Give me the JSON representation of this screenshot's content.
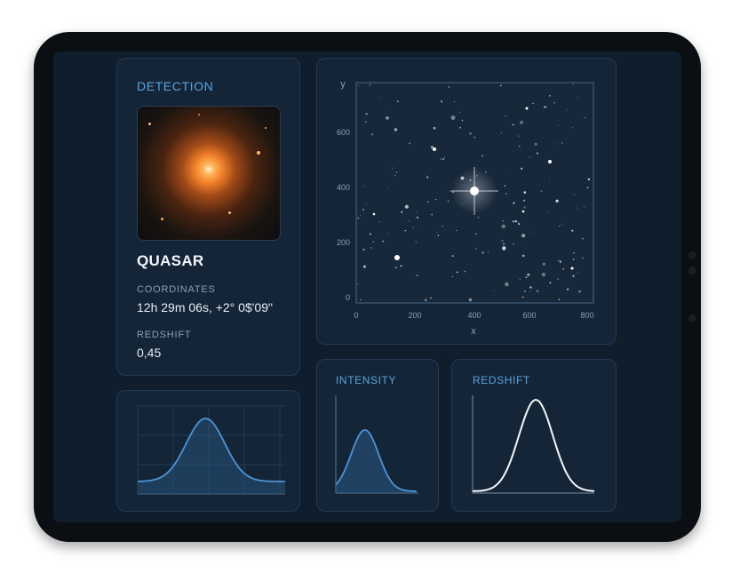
{
  "detection": {
    "heading": "DETECTION",
    "object_name": "QUASAR",
    "coordinates_label": "COORDINATES",
    "coordinates_value": "12h 29m 06s, +2° 0$'09\"",
    "redshift_label": "REDSHIFT",
    "redshift_value": "0,45"
  },
  "starfield_plot": {
    "ylabel": "y",
    "xlabel": "x",
    "x_ticks": [
      "0",
      "200",
      "400",
      "600",
      "800"
    ],
    "y_ticks": [
      "0",
      "200",
      "400",
      "600"
    ]
  },
  "intensity_panel": {
    "heading": "INTENSITY"
  },
  "redshift_panel": {
    "heading": "REDSHIFT"
  },
  "colors": {
    "accent": "#5aa3de",
    "panel": "#142538",
    "screen": "#0f1d2c",
    "quasar": "#f39a3c"
  }
}
